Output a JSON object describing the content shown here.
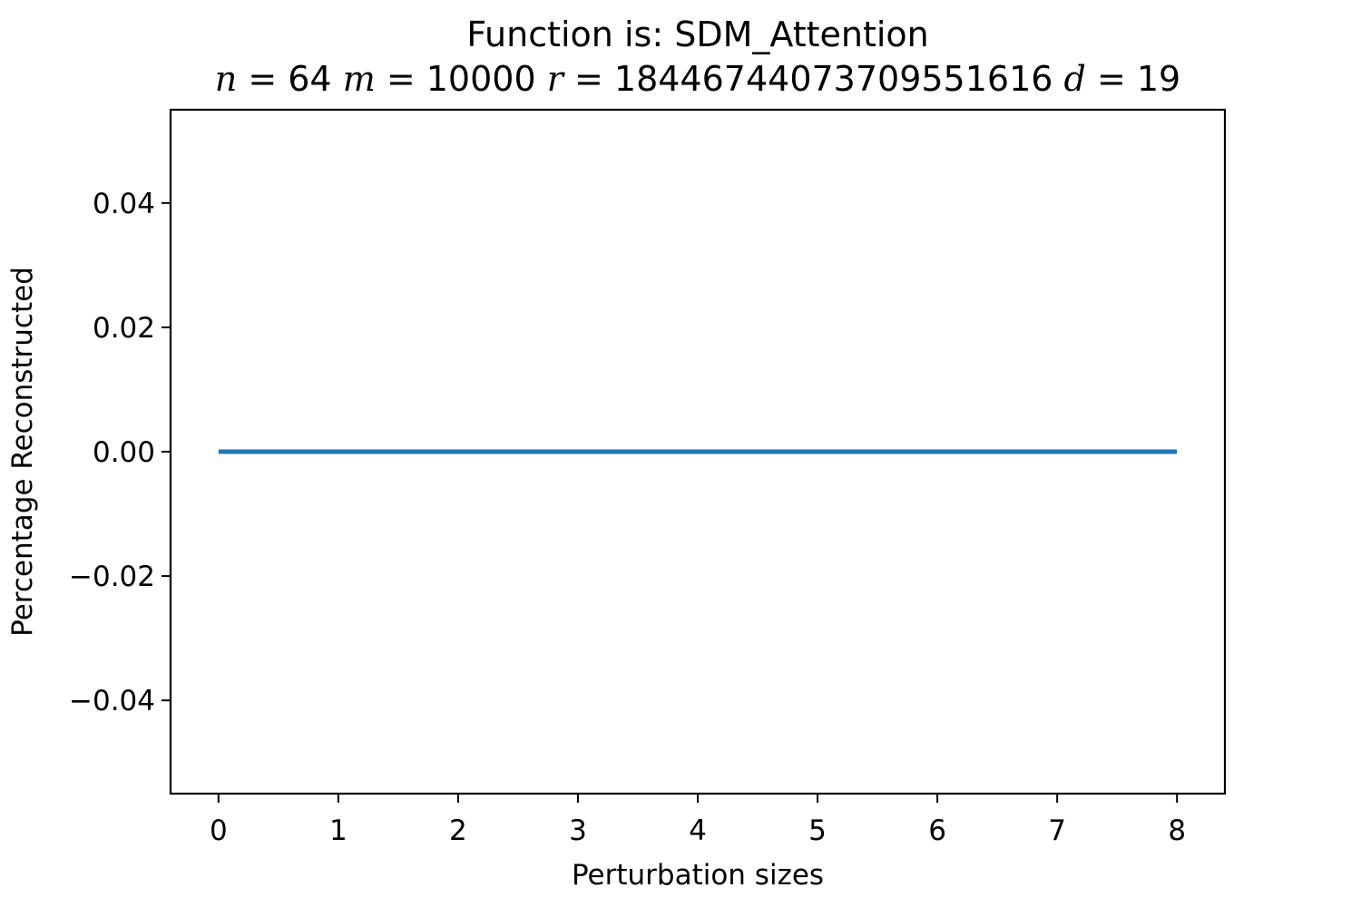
{
  "chart_data": {
    "type": "line",
    "title": "Function is: SDM_Attention",
    "subtitle_parts": [
      {
        "var": "n",
        "value": "64"
      },
      {
        "var": "m",
        "value": "10000"
      },
      {
        "var": "r",
        "value": "18446744073709551616"
      },
      {
        "var": "d",
        "value": "19"
      }
    ],
    "xlabel": "Perturbation sizes",
    "ylabel": "Percentage Reconstructed",
    "xlim": [
      -0.4,
      8.4
    ],
    "ylim": [
      -0.055,
      0.055
    ],
    "xticks": [
      0,
      1,
      2,
      3,
      4,
      5,
      6,
      7,
      8
    ],
    "xtick_labels": [
      "0",
      "1",
      "2",
      "3",
      "4",
      "5",
      "6",
      "7",
      "8"
    ],
    "yticks": [
      -0.04,
      -0.02,
      0.0,
      0.02,
      0.04
    ],
    "ytick_labels": [
      "−0.04",
      "−0.02",
      "0.00",
      "0.02",
      "0.04"
    ],
    "grid": false,
    "series": [
      {
        "color": "#1f77b4",
        "x": [
          0,
          1,
          2,
          3,
          4,
          5,
          6,
          7,
          8
        ],
        "y": [
          0,
          0,
          0,
          0,
          0,
          0,
          0,
          0,
          0
        ]
      }
    ]
  }
}
